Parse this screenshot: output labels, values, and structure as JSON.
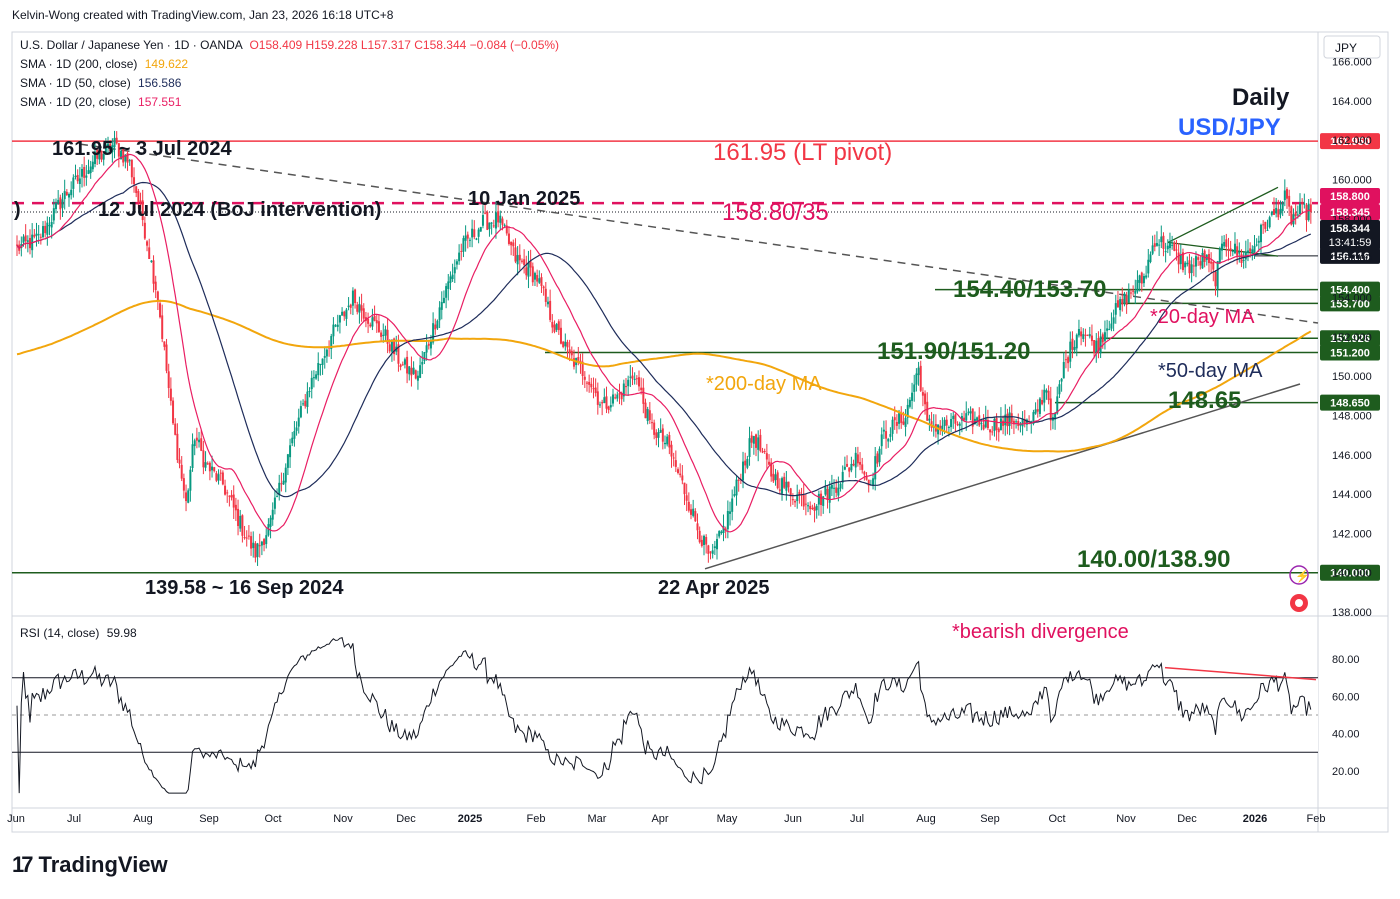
{
  "header": {
    "attribution": "Kelvin-Wong created with TradingView.com, Jan 23, 2026 16:18 UTC+8"
  },
  "legend": {
    "symbol": "U.S. Dollar / Japanese Yen · 1D · OANDA",
    "ohlc": "O158.409 H159.228 L157.317 C158.344 −0.084 (−0.05%)",
    "sma200": {
      "label": "SMA · 1D (200, close)",
      "value": "149.622",
      "color": "#f2a60d"
    },
    "sma50": {
      "label": "SMA · 1D (50, close)",
      "value": "156.586",
      "color": "#1e2c5a"
    },
    "sma20": {
      "label": "SMA · 1D (20, close)",
      "value": "157.551",
      "color": "#e91e63"
    }
  },
  "rsi_legend": {
    "label": "RSI (14, close)",
    "value": "59.98"
  },
  "brand": {
    "name": "TradingView"
  },
  "colors": {
    "up": "#089981",
    "down": "#f23645",
    "red_level": "#f23645",
    "pink_level": "#e0115f",
    "green_text": "#1e5c1e",
    "blue_text": "#2962ff"
  },
  "chart_data": {
    "type": "candlestick",
    "currency_label": "JPY",
    "ylim": [
      137.8,
      167.5
    ],
    "price_ticks": [
      "166.000",
      "164.000",
      "162.000",
      "160.000",
      "158.000",
      "156.000",
      "154.000",
      "152.000",
      "150.000",
      "148.000",
      "146.000",
      "144.000",
      "142.000",
      "140.000",
      "138.000"
    ],
    "time_labels": [
      "Jun",
      "Jul",
      "Aug",
      "Sep",
      "Oct",
      "Nov",
      "Dec",
      "2025",
      "Feb",
      "Mar",
      "Apr",
      "May",
      "Jun",
      "Jul",
      "Aug",
      "Sep",
      "Oct",
      "Nov",
      "Dec",
      "2026",
      "Feb"
    ],
    "horizontal_levels": [
      {
        "price": 161.95,
        "label": "161.950",
        "style": "solid",
        "color": "#f23645"
      },
      {
        "price": 158.8,
        "label": "158.800",
        "style": "dashed",
        "color": "#e0115f"
      },
      {
        "price": 158.35,
        "label": "158.345",
        "style": "dashed",
        "color": "#e0115f"
      },
      {
        "price": 156.116,
        "label": "156.116",
        "style": "tag",
        "color": "#131722"
      },
      {
        "price": 154.4,
        "label": "154.400",
        "style": "solid",
        "color": "#1e5c1e"
      },
      {
        "price": 153.7,
        "label": "153.700",
        "style": "solid",
        "color": "#1e5c1e"
      },
      {
        "price": 151.926,
        "label": "151.926",
        "style": "solid",
        "color": "#1e5c1e"
      },
      {
        "price": 151.2,
        "label": "151.200",
        "style": "solid",
        "color": "#1e5c1e"
      },
      {
        "price": 148.65,
        "label": "148.650",
        "style": "solid",
        "color": "#1e5c1e"
      },
      {
        "price": 140.0,
        "label": "140.000",
        "style": "solid",
        "color": "#1e5c1e"
      }
    ],
    "last_price": {
      "value": "158.344",
      "countdown": "13:41:59"
    },
    "annotations": {
      "title_daily": "Daily",
      "title_pair": "USD/JPY",
      "lt_pivot": "161.95 (LT pivot)",
      "resistance": "158.80/35",
      "high_2024": "161.95 ~ 3 Jul 2024",
      "boj": "12 Jul 2024 (BoJ intervention)",
      "high_2025": "10 Jan 2025",
      "low_2024": "139.58 ~ 16 Sep 2024",
      "low_2025": "22 Apr 2025",
      "s1": "154.40/153.70",
      "s2": "151.90/151.20",
      "s3": "148.65",
      "s4": "140.00/138.90",
      "ma20": "*20-day MA",
      "ma50": "*50-day MA",
      "ma200": "*200-day MA",
      "bearish": "*bearish divergence",
      "left_paren": ")"
    },
    "anchors": [
      {
        "d": 0,
        "p": 156.5
      },
      {
        "d": 10,
        "p": 157.0
      },
      {
        "d": 22,
        "p": 159.2
      },
      {
        "d": 35,
        "p": 160.9
      },
      {
        "d": 45,
        "p": 161.8
      },
      {
        "d": 52,
        "p": 160.8
      },
      {
        "d": 58,
        "p": 158.0
      },
      {
        "d": 65,
        "p": 154.0
      },
      {
        "d": 72,
        "p": 147.5
      },
      {
        "d": 78,
        "p": 143.5
      },
      {
        "d": 82,
        "p": 147.0
      },
      {
        "d": 87,
        "p": 145.5
      },
      {
        "d": 95,
        "p": 144.5
      },
      {
        "d": 105,
        "p": 142.0
      },
      {
        "d": 110,
        "p": 141.0
      },
      {
        "d": 117,
        "p": 142.5
      },
      {
        "d": 125,
        "p": 146.0
      },
      {
        "d": 135,
        "p": 149.5
      },
      {
        "d": 145,
        "p": 152.0
      },
      {
        "d": 155,
        "p": 154.0
      },
      {
        "d": 162,
        "p": 153.0
      },
      {
        "d": 170,
        "p": 152.0
      },
      {
        "d": 178,
        "p": 150.5
      },
      {
        "d": 185,
        "p": 150.0
      },
      {
        "d": 195,
        "p": 153.5
      },
      {
        "d": 205,
        "p": 156.5
      },
      {
        "d": 215,
        "p": 157.8
      },
      {
        "d": 222,
        "p": 158.0
      },
      {
        "d": 230,
        "p": 156.0
      },
      {
        "d": 240,
        "p": 155.0
      },
      {
        "d": 248,
        "p": 152.5
      },
      {
        "d": 255,
        "p": 151.0
      },
      {
        "d": 263,
        "p": 150.0
      },
      {
        "d": 270,
        "p": 148.5
      },
      {
        "d": 278,
        "p": 149.0
      },
      {
        "d": 285,
        "p": 150.2
      },
      {
        "d": 292,
        "p": 147.5
      },
      {
        "d": 300,
        "p": 146.5
      },
      {
        "d": 307,
        "p": 144.5
      },
      {
        "d": 315,
        "p": 142.0
      },
      {
        "d": 320,
        "p": 140.6
      },
      {
        "d": 327,
        "p": 142.5
      },
      {
        "d": 335,
        "p": 145.5
      },
      {
        "d": 340,
        "p": 147.0
      },
      {
        "d": 348,
        "p": 145.0
      },
      {
        "d": 358,
        "p": 144.0
      },
      {
        "d": 368,
        "p": 143.5
      },
      {
        "d": 378,
        "p": 144.5
      },
      {
        "d": 388,
        "p": 146.0
      },
      {
        "d": 393,
        "p": 144.5
      },
      {
        "d": 400,
        "p": 147.0
      },
      {
        "d": 410,
        "p": 148.0
      },
      {
        "d": 416,
        "p": 150.4
      },
      {
        "d": 420,
        "p": 147.5
      },
      {
        "d": 430,
        "p": 147.5
      },
      {
        "d": 440,
        "p": 147.8
      },
      {
        "d": 450,
        "p": 147.5
      },
      {
        "d": 460,
        "p": 147.8
      },
      {
        "d": 468,
        "p": 147.5
      },
      {
        "d": 475,
        "p": 149.5
      },
      {
        "d": 478,
        "p": 147.5
      },
      {
        "d": 483,
        "p": 150.5
      },
      {
        "d": 490,
        "p": 152.5
      },
      {
        "d": 498,
        "p": 151.5
      },
      {
        "d": 505,
        "p": 153.0
      },
      {
        "d": 512,
        "p": 154.0
      },
      {
        "d": 520,
        "p": 155.0
      },
      {
        "d": 525,
        "p": 157.0
      },
      {
        "d": 532,
        "p": 156.5
      },
      {
        "d": 540,
        "p": 155.5
      },
      {
        "d": 548,
        "p": 156.0
      },
      {
        "d": 553,
        "p": 155.0
      },
      {
        "d": 557,
        "p": 157.0
      },
      {
        "d": 565,
        "p": 156.0
      },
      {
        "d": 570,
        "p": 156.5
      },
      {
        "d": 575,
        "p": 157.5
      },
      {
        "d": 580,
        "p": 158.2
      },
      {
        "d": 585,
        "p": 159.0
      },
      {
        "d": 588,
        "p": 158.0
      },
      {
        "d": 593,
        "p": 158.4
      },
      {
        "d": 597,
        "p": 158.344
      }
    ],
    "rsi": {
      "ylim": [
        0,
        100
      ],
      "ticks": [
        "80.00",
        "60.00",
        "40.00",
        "20.00"
      ],
      "upper": 70,
      "mid": 50,
      "lower": 30,
      "line_color": "#131722"
    }
  }
}
